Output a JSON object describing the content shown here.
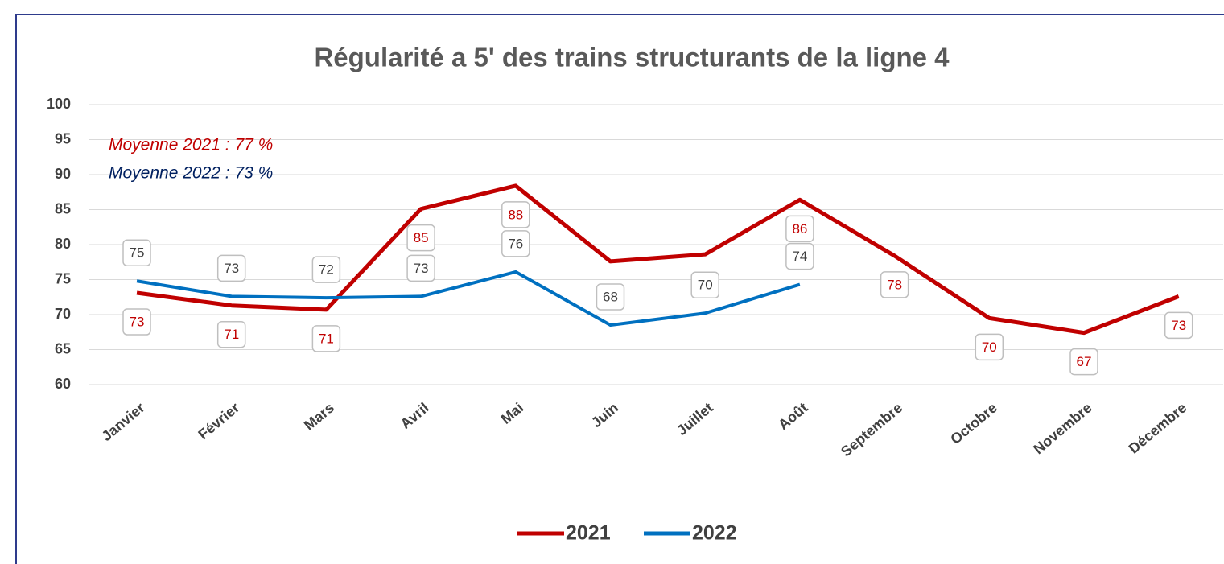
{
  "chart_data": {
    "type": "line",
    "title": "Régularité a 5' des trains structurants de la ligne 4",
    "categories": [
      "Janvier",
      "Février",
      "Mars",
      "Avril",
      "Mai",
      "Juin",
      "Juillet",
      "Août",
      "Septembre",
      "Octobre",
      "Novembre",
      "Décembre"
    ],
    "series": [
      {
        "name": "2021",
        "color": "#c00000",
        "values": [
          73.1,
          71.3,
          70.7,
          85.1,
          88.4,
          77.6,
          78.6,
          86.4,
          78.4,
          69.5,
          67.4,
          72.6
        ],
        "value_labels": [
          "73",
          "71",
          "71",
          "85",
          "88",
          null,
          null,
          "86",
          "78",
          "70",
          "67",
          "73"
        ]
      },
      {
        "name": "2022",
        "color": "#0070c0",
        "values": [
          74.8,
          72.6,
          72.4,
          72.6,
          76.1,
          68.5,
          70.2,
          74.3,
          null,
          null,
          null,
          null
        ],
        "value_labels": [
          "75",
          "73",
          "72",
          "73",
          "76",
          "68",
          "70",
          "74",
          null,
          null,
          null,
          null
        ]
      }
    ],
    "annotations": [
      {
        "text": "Moyenne 2021 : 77 %",
        "color": "#c00000"
      },
      {
        "text": "Moyenne 2022 : 73 %",
        "color": "#002060"
      }
    ],
    "ylim": [
      60,
      100
    ],
    "yticks": [
      60,
      65,
      70,
      75,
      80,
      85,
      90,
      95,
      100
    ],
    "grid": true,
    "legend": "bottom"
  }
}
